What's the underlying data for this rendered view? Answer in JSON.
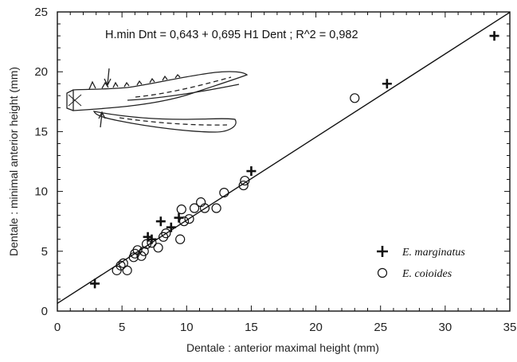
{
  "chart_data": {
    "type": "scatter",
    "title": "",
    "equation": "H.min Dnt = 0,643 + 0,695  H1 Dent ;  R^2 = 0,982",
    "xlabel": "Dentale : anterior maximal height (mm)",
    "ylabel": "Dentale : minimal anterior height (mm)",
    "xlim": [
      0,
      35
    ],
    "ylim": [
      0,
      25
    ],
    "x_ticks": [
      0,
      5,
      10,
      15,
      20,
      25,
      30,
      35
    ],
    "y_ticks": [
      0,
      5,
      10,
      15,
      20,
      25
    ],
    "grid": false,
    "legend_position": "bottom-right",
    "regression_line": {
      "intercept": 0.643,
      "slope": 0.695
    },
    "series": [
      {
        "name": "E. marginatus",
        "marker": "plus",
        "points": [
          [
            2.9,
            2.3
          ],
          [
            7.0,
            6.2
          ],
          [
            7.3,
            6.0
          ],
          [
            8.0,
            7.5
          ],
          [
            8.8,
            7.0
          ],
          [
            9.4,
            7.8
          ],
          [
            15.0,
            11.7
          ],
          [
            25.5,
            19.0
          ],
          [
            33.8,
            23.0
          ]
        ]
      },
      {
        "name": "E. coioides",
        "marker": "circle",
        "points": [
          [
            4.6,
            3.4
          ],
          [
            4.9,
            3.8
          ],
          [
            5.1,
            4.0
          ],
          [
            5.4,
            3.4
          ],
          [
            5.9,
            4.5
          ],
          [
            6.0,
            4.8
          ],
          [
            6.2,
            5.1
          ],
          [
            6.5,
            4.6
          ],
          [
            6.7,
            5.0
          ],
          [
            6.9,
            5.6
          ],
          [
            7.3,
            5.7
          ],
          [
            7.8,
            5.3
          ],
          [
            8.2,
            6.2
          ],
          [
            8.4,
            6.5
          ],
          [
            9.5,
            6.0
          ],
          [
            9.6,
            8.5
          ],
          [
            9.8,
            7.5
          ],
          [
            10.2,
            7.7
          ],
          [
            10.6,
            8.6
          ],
          [
            11.1,
            9.1
          ],
          [
            11.4,
            8.6
          ],
          [
            12.3,
            8.6
          ],
          [
            12.9,
            9.9
          ],
          [
            14.4,
            10.5
          ],
          [
            14.5,
            10.9
          ],
          [
            23.0,
            17.8
          ]
        ]
      }
    ],
    "annotation": "fish-jaw-illustration"
  },
  "legend": [
    {
      "label": "E. marginatus",
      "marker": "plus"
    },
    {
      "label": "E. coioides",
      "marker": "circle"
    }
  ],
  "colors": {
    "ink": "#111111",
    "background": "#ffffff"
  }
}
